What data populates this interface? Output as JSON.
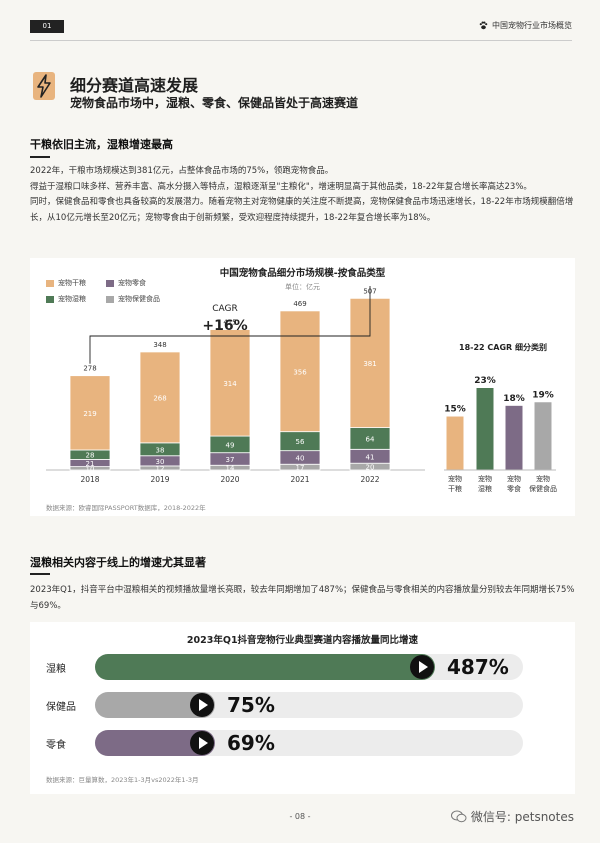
{
  "header": {
    "page_tag": "01",
    "report_title": "中国宠物行业市场概览"
  },
  "hero": {
    "title": "细分赛道高速发展",
    "subtitle": "宠物食品市场中，湿粮、零食、保健品皆处于高速赛道"
  },
  "section1": {
    "title": "干粮依旧主流，湿粮增速最高",
    "paragraphs": [
      "2022年，干粮市场规模达到381亿元，占整体食品市场的75%，领跑宠物食品。",
      "得益于湿粮口味多样、营养丰富、高水分摄入等特点，湿粮逐渐呈\"主粮化\"，增速明显高于其他品类，18-22年复合增长率高达23%。",
      "同时，保健食品和零食也具备较高的发展潜力。随着宠物主对宠物健康的关注度不断提高，宠物保健食品市场迅速增长，18-22年市场规模翻倍增长，从10亿元增长至20亿元；宠物零食由于创新频繁，受欢迎程度持续提升，18-22年复合增长率为18%。"
    ]
  },
  "chart_data": [
    {
      "type": "bar",
      "title": "中国宠物食品细分市场规模-按食品类型",
      "subtitle": "单位：亿元",
      "categories": [
        "2018",
        "2019",
        "2020",
        "2021",
        "2022"
      ],
      "stacked": true,
      "series": [
        {
          "name": "宠物保健食品",
          "color": "#a8a8a8",
          "values": [
            10,
            12,
            14,
            17,
            20
          ]
        },
        {
          "name": "宠物零食",
          "color": "#7d6b86",
          "values": [
            21,
            30,
            37,
            40,
            41
          ]
        },
        {
          "name": "宠物湿粮",
          "color": "#4f7a56",
          "values": [
            28,
            38,
            49,
            56,
            64
          ]
        },
        {
          "name": "宠物干粮",
          "color": "#e8b47f",
          "values": [
            219,
            268,
            314,
            356,
            381
          ]
        }
      ],
      "totals": [
        278,
        348,
        415,
        469,
        507
      ],
      "annotation_label": "CAGR",
      "annotation_value": "+16%",
      "ylim": [
        0,
        507
      ],
      "legend_position": "top-left",
      "source": "数据来源：欧睿国际PASSPORT数据库，2018-2022年"
    },
    {
      "type": "bar",
      "title": "18-22 CAGR 细分类别",
      "categories": [
        "宠物干粮",
        "宠物湿粮",
        "宠物零食",
        "宠物保健食品"
      ],
      "values": [
        15,
        23,
        18,
        19
      ],
      "labels": [
        "15%",
        "23%",
        "18%",
        "19%"
      ],
      "colors": [
        "#e8b47f",
        "#4f7a56",
        "#7d6b86",
        "#a8a8a8"
      ],
      "ylim": [
        0,
        23
      ]
    },
    {
      "type": "bar",
      "orientation": "horizontal",
      "title": "2023年Q1抖音宠物行业典型赛道内容播放量同比增速",
      "categories": [
        "湿粮",
        "保健品",
        "零食"
      ],
      "values": [
        487,
        75,
        69
      ],
      "labels": [
        "487%",
        "75%",
        "69%"
      ],
      "colors": [
        "#4f7a56",
        "#a8a8a8",
        "#7d6b86"
      ],
      "xlim": [
        0,
        487
      ],
      "source": "数据来源：巨量算数，2023年1-3月vs2022年1-3月"
    }
  ],
  "section2": {
    "title": "湿粮相关内容于线上的增速尤其显著",
    "paragraph": "2023年Q1，抖音平台中湿粮相关的视频播放量增长亮眼，较去年同期增加了487%；保健食品与零食相关的内容播放量分别较去年同期增长75%与69%。"
  },
  "footer": {
    "page_number": "- 08 -",
    "wechat": "微信号: petsnotes"
  },
  "icons": [
    "lightning-icon",
    "paw-icon",
    "play-icon",
    "wechat-icon"
  ]
}
